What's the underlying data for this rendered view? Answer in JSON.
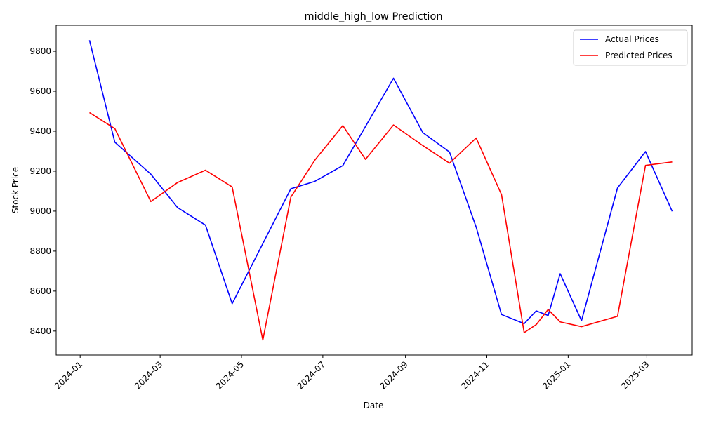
{
  "chart_data": {
    "type": "line",
    "title": "middle_high_low Prediction",
    "xlabel": "Date",
    "ylabel": "Stock Price",
    "x_ticks": [
      "2024-01",
      "2024-03",
      "2024-05",
      "2024-07",
      "2024-09",
      "2024-11",
      "2025-01",
      "2025-03"
    ],
    "y_ticks": [
      8400,
      8600,
      8800,
      9000,
      9200,
      9400,
      9600,
      9800
    ],
    "xlim": [
      "2023-12-14",
      "2025-04-04"
    ],
    "ylim": [
      8280,
      9930
    ],
    "grid": false,
    "legend_position": "top-right",
    "series": [
      {
        "name": "Actual Prices",
        "color": "#0000ff",
        "points": [
          [
            "2024-01-08",
            9855
          ],
          [
            "2024-01-27",
            9345
          ],
          [
            "2024-02-23",
            9185
          ],
          [
            "2024-03-14",
            9018
          ],
          [
            "2024-04-04",
            8930
          ],
          [
            "2024-04-24",
            8537
          ],
          [
            "2024-06-07",
            9112
          ],
          [
            "2024-06-25",
            9149
          ],
          [
            "2024-07-16",
            9228
          ],
          [
            "2024-08-23",
            9665
          ],
          [
            "2024-09-14",
            9393
          ],
          [
            "2024-10-04",
            9296
          ],
          [
            "2024-10-24",
            8920
          ],
          [
            "2024-11-12",
            8483
          ],
          [
            "2024-11-29",
            8437
          ],
          [
            "2024-12-08",
            8501
          ],
          [
            "2024-12-17",
            8478
          ],
          [
            "2024-12-26",
            8687
          ],
          [
            "2025-01-11",
            8452
          ],
          [
            "2025-02-07",
            9116
          ],
          [
            "2025-02-28",
            9298
          ],
          [
            "2025-03-20",
            8999
          ]
        ]
      },
      {
        "name": "Predicted Prices",
        "color": "#ff0000",
        "points": [
          [
            "2024-01-08",
            9493
          ],
          [
            "2024-01-27",
            9413
          ],
          [
            "2024-02-23",
            9048
          ],
          [
            "2024-03-14",
            9143
          ],
          [
            "2024-04-04",
            9205
          ],
          [
            "2024-04-24",
            9121
          ],
          [
            "2024-05-17",
            8355
          ],
          [
            "2024-06-07",
            9070
          ],
          [
            "2024-06-25",
            9255
          ],
          [
            "2024-07-16",
            9428
          ],
          [
            "2024-08-02",
            9259
          ],
          [
            "2024-08-23",
            9431
          ],
          [
            "2024-09-14",
            9328
          ],
          [
            "2024-10-04",
            9240
          ],
          [
            "2024-10-24",
            9366
          ],
          [
            "2024-11-12",
            9083
          ],
          [
            "2024-11-29",
            8392
          ],
          [
            "2024-12-08",
            8432
          ],
          [
            "2024-12-17",
            8508
          ],
          [
            "2024-12-26",
            8446
          ],
          [
            "2025-01-11",
            8422
          ],
          [
            "2025-02-07",
            8474
          ],
          [
            "2025-02-28",
            9229
          ],
          [
            "2025-03-20",
            9246
          ]
        ]
      }
    ]
  }
}
